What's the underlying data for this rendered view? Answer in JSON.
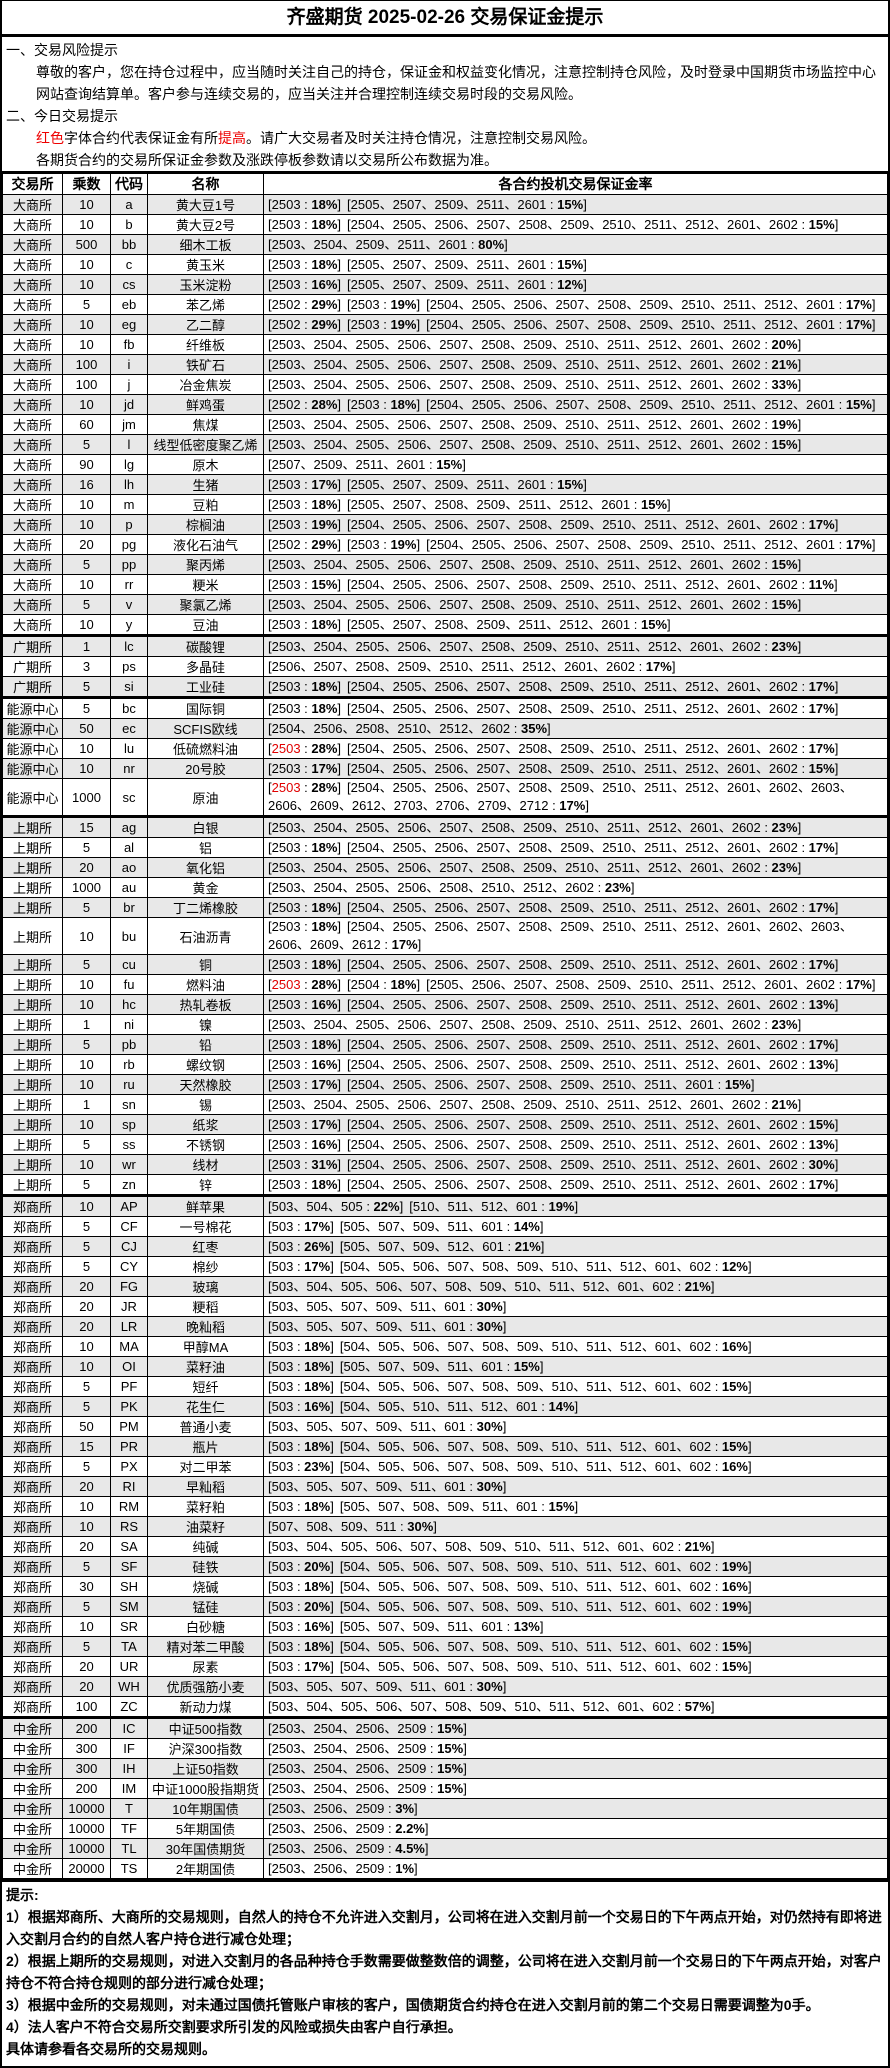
{
  "title": "齐盛期货 2025-02-26 交易保证金提示",
  "intro": {
    "s1_title": "一、交易风险提示",
    "s1_text": "尊敬的客户，您在持仓过程中，应当随时关注自己的持仓，保证金和权益变化情况，注意控制持仓风险，及时登录中国期货市场监控中心网站查询结算单。客户参与连续交易的，应当关注并合理控制连续交易时段的交易风险。",
    "s2_title": "二、今日交易提示",
    "s2_red1": "红色",
    "s2_mid": "字体合约代表保证金有所",
    "s2_red2": "提高",
    "s2_end": "。请广大交易者及时关注持仓情况，注意控制交易风险。",
    "s2_line2": "各期货合约的交易所保证金参数及涨跌停板参数请以交易所公布数据为准。"
  },
  "colors": {
    "highlight": "#e00000",
    "stripe": "#e8e8e8"
  },
  "headers": [
    "交易所",
    "乘数",
    "代码",
    "名称",
    "各合约投机交易保证金率"
  ],
  "rows": [
    [
      "大商所",
      "10",
      "a",
      "黄大豆1号",
      [
        [
          "2503",
          "18%"
        ],
        [
          "2505、2507、2509、2511、2601",
          "15%"
        ]
      ]
    ],
    [
      "大商所",
      "10",
      "b",
      "黄大豆2号",
      [
        [
          "2503",
          "18%"
        ],
        [
          "2504、2505、2506、2507、2508、2509、2510、2511、2512、2601、2602",
          "15%"
        ]
      ]
    ],
    [
      "大商所",
      "500",
      "bb",
      "细木工板",
      [
        [
          "2503、2504、2509、2511、2601",
          "80%"
        ]
      ]
    ],
    [
      "大商所",
      "10",
      "c",
      "黄玉米",
      [
        [
          "2503",
          "18%"
        ],
        [
          "2505、2507、2509、2511、2601",
          "15%"
        ]
      ]
    ],
    [
      "大商所",
      "10",
      "cs",
      "玉米淀粉",
      [
        [
          "2503",
          "16%"
        ],
        [
          "2505、2507、2509、2511、2601",
          "12%"
        ]
      ]
    ],
    [
      "大商所",
      "5",
      "eb",
      "苯乙烯",
      [
        [
          "2502",
          "29%"
        ],
        [
          "2503",
          "19%"
        ],
        [
          "2504、2505、2506、2507、2508、2509、2510、2511、2512、2601",
          "17%"
        ]
      ]
    ],
    [
      "大商所",
      "10",
      "eg",
      "乙二醇",
      [
        [
          "2502",
          "29%"
        ],
        [
          "2503",
          "19%"
        ],
        [
          "2504、2505、2506、2507、2508、2509、2510、2511、2512、2601",
          "17%"
        ]
      ]
    ],
    [
      "大商所",
      "10",
      "fb",
      "纤维板",
      [
        [
          "2503、2504、2505、2506、2507、2508、2509、2510、2511、2512、2601、2602",
          "20%"
        ]
      ]
    ],
    [
      "大商所",
      "100",
      "i",
      "铁矿石",
      [
        [
          "2503、2504、2505、2506、2507、2508、2509、2510、2511、2512、2601、2602",
          "21%"
        ]
      ]
    ],
    [
      "大商所",
      "100",
      "j",
      "冶金焦炭",
      [
        [
          "2503、2504、2505、2506、2507、2508、2509、2510、2511、2512、2601、2602",
          "33%"
        ]
      ]
    ],
    [
      "大商所",
      "10",
      "jd",
      "鲜鸡蛋",
      [
        [
          "2502",
          "28%"
        ],
        [
          "2503",
          "18%"
        ],
        [
          "2504、2505、2506、2507、2508、2509、2510、2511、2512、2601",
          "15%"
        ]
      ]
    ],
    [
      "大商所",
      "60",
      "jm",
      "焦煤",
      [
        [
          "2503、2504、2505、2506、2507、2508、2509、2510、2511、2512、2601、2602",
          "19%"
        ]
      ]
    ],
    [
      "大商所",
      "5",
      "l",
      "线型低密度聚乙烯",
      [
        [
          "2503、2504、2505、2506、2507、2508、2509、2510、2511、2512、2601、2602",
          "15%"
        ]
      ]
    ],
    [
      "大商所",
      "90",
      "lg",
      "原木",
      [
        [
          "2507、2509、2511、2601",
          "15%"
        ]
      ]
    ],
    [
      "大商所",
      "16",
      "lh",
      "生猪",
      [
        [
          "2503",
          "17%"
        ],
        [
          "2505、2507、2509、2511、2601",
          "15%"
        ]
      ]
    ],
    [
      "大商所",
      "10",
      "m",
      "豆粕",
      [
        [
          "2503",
          "18%"
        ],
        [
          "2505、2507、2508、2509、2511、2512、2601",
          "15%"
        ]
      ]
    ],
    [
      "大商所",
      "10",
      "p",
      "棕榈油",
      [
        [
          "2503",
          "19%"
        ],
        [
          "2504、2505、2506、2507、2508、2509、2510、2511、2512、2601、2602",
          "17%"
        ]
      ]
    ],
    [
      "大商所",
      "20",
      "pg",
      "液化石油气",
      [
        [
          "2502",
          "29%"
        ],
        [
          "2503",
          "19%"
        ],
        [
          "2504、2505、2506、2507、2508、2509、2510、2511、2512、2601",
          "17%"
        ]
      ]
    ],
    [
      "大商所",
      "5",
      "pp",
      "聚丙烯",
      [
        [
          "2503、2504、2505、2506、2507、2508、2509、2510、2511、2512、2601、2602",
          "15%"
        ]
      ]
    ],
    [
      "大商所",
      "10",
      "rr",
      "粳米",
      [
        [
          "2503",
          "15%"
        ],
        [
          "2504、2505、2506、2507、2508、2509、2510、2511、2512、2601、2602",
          "11%"
        ]
      ]
    ],
    [
      "大商所",
      "5",
      "v",
      "聚氯乙烯",
      [
        [
          "2503、2504、2505、2506、2507、2508、2509、2510、2511、2512、2601、2602",
          "15%"
        ]
      ]
    ],
    [
      "大商所",
      "10",
      "y",
      "豆油",
      [
        [
          "2503",
          "18%"
        ],
        [
          "2505、2507、2508、2509、2511、2512、2601",
          "15%"
        ]
      ]
    ],
    [
      "广期所",
      "1",
      "lc",
      "碳酸锂",
      [
        [
          "2503、2504、2505、2506、2507、2508、2509、2510、2511、2512、2601、2602",
          "23%"
        ]
      ]
    ],
    [
      "广期所",
      "3",
      "ps",
      "多晶硅",
      [
        [
          "2506、2507、2508、2509、2510、2511、2512、2601、2602",
          "17%"
        ]
      ]
    ],
    [
      "广期所",
      "5",
      "si",
      "工业硅",
      [
        [
          "2503",
          "18%"
        ],
        [
          "2504、2505、2506、2507、2508、2509、2510、2511、2512、2601、2602",
          "17%"
        ]
      ]
    ],
    [
      "能源中心",
      "5",
      "bc",
      "国际铜",
      [
        [
          "2503",
          "18%"
        ],
        [
          "2504、2505、2506、2507、2508、2509、2510、2511、2512、2601、2602",
          "17%"
        ]
      ]
    ],
    [
      "能源中心",
      "50",
      "ec",
      "SCFIS欧线",
      [
        [
          "2504、2506、2508、2510、2512、2602",
          "35%"
        ]
      ]
    ],
    [
      "能源中心",
      "10",
      "lu",
      "低硫燃料油",
      [
        [
          "2503",
          "28%",
          true
        ],
        [
          "2504、2505、2506、2507、2508、2509、2510、2511、2512、2601、2602",
          "17%"
        ]
      ]
    ],
    [
      "能源中心",
      "10",
      "nr",
      "20号胶",
      [
        [
          "2503",
          "17%"
        ],
        [
          "2504、2505、2506、2507、2508、2509、2510、2511、2512、2601、2602",
          "15%"
        ]
      ]
    ],
    [
      "能源中心",
      "1000",
      "sc",
      "原油",
      [
        [
          "2503",
          "28%",
          true
        ],
        [
          "2504、2505、2506、2507、2508、2509、2510、2511、2512、2601、2602、2603、2606、2609、2612、2703、2706、2709、2712",
          "17%"
        ]
      ]
    ],
    [
      "上期所",
      "15",
      "ag",
      "白银",
      [
        [
          "2503、2504、2505、2506、2507、2508、2509、2510、2511、2512、2601、2602",
          "23%"
        ]
      ]
    ],
    [
      "上期所",
      "5",
      "al",
      "铝",
      [
        [
          "2503",
          "18%"
        ],
        [
          "2504、2505、2506、2507、2508、2509、2510、2511、2512、2601、2602",
          "17%"
        ]
      ]
    ],
    [
      "上期所",
      "20",
      "ao",
      "氧化铝",
      [
        [
          "2503、2504、2505、2506、2507、2508、2509、2510、2511、2512、2601、2602",
          "23%"
        ]
      ]
    ],
    [
      "上期所",
      "1000",
      "au",
      "黄金",
      [
        [
          "2503、2504、2505、2506、2508、2510、2512、2602",
          "23%"
        ]
      ]
    ],
    [
      "上期所",
      "5",
      "br",
      "丁二烯橡胶",
      [
        [
          "2503",
          "18%"
        ],
        [
          "2504、2505、2506、2507、2508、2509、2510、2511、2512、2601、2602",
          "17%"
        ]
      ]
    ],
    [
      "上期所",
      "10",
      "bu",
      "石油沥青",
      [
        [
          "2503",
          "18%"
        ],
        [
          "2504、2505、2506、2507、2508、2509、2510、2511、2512、2601、2602、2603、2606、2609、2612",
          "17%"
        ]
      ]
    ],
    [
      "上期所",
      "5",
      "cu",
      "铜",
      [
        [
          "2503",
          "18%"
        ],
        [
          "2504、2505、2506、2507、2508、2509、2510、2511、2512、2601、2602",
          "17%"
        ]
      ]
    ],
    [
      "上期所",
      "10",
      "fu",
      "燃料油",
      [
        [
          "2503",
          "28%",
          true
        ],
        [
          "2504",
          "18%"
        ],
        [
          "2505、2506、2507、2508、2509、2510、2511、2512、2601、2602",
          "17%"
        ]
      ]
    ],
    [
      "上期所",
      "10",
      "hc",
      "热轧卷板",
      [
        [
          "2503",
          "16%"
        ],
        [
          "2504、2505、2506、2507、2508、2509、2510、2511、2512、2601、2602",
          "13%"
        ]
      ]
    ],
    [
      "上期所",
      "1",
      "ni",
      "镍",
      [
        [
          "2503、2504、2505、2506、2507、2508、2509、2510、2511、2512、2601、2602",
          "23%"
        ]
      ]
    ],
    [
      "上期所",
      "5",
      "pb",
      "铅",
      [
        [
          "2503",
          "18%"
        ],
        [
          "2504、2505、2506、2507、2508、2509、2510、2511、2512、2601、2602",
          "17%"
        ]
      ]
    ],
    [
      "上期所",
      "10",
      "rb",
      "螺纹钢",
      [
        [
          "2503",
          "16%"
        ],
        [
          "2504、2505、2506、2507、2508、2509、2510、2511、2512、2601、2602",
          "13%"
        ]
      ]
    ],
    [
      "上期所",
      "10",
      "ru",
      "天然橡胶",
      [
        [
          "2503",
          "17%"
        ],
        [
          "2504、2505、2506、2507、2508、2509、2510、2511、2601",
          "15%"
        ]
      ]
    ],
    [
      "上期所",
      "1",
      "sn",
      "锡",
      [
        [
          "2503、2504、2505、2506、2507、2508、2509、2510、2511、2512、2601、2602",
          "21%"
        ]
      ]
    ],
    [
      "上期所",
      "10",
      "sp",
      "纸浆",
      [
        [
          "2503",
          "17%"
        ],
        [
          "2504、2505、2506、2507、2508、2509、2510、2511、2512、2601、2602",
          "15%"
        ]
      ]
    ],
    [
      "上期所",
      "5",
      "ss",
      "不锈钢",
      [
        [
          "2503",
          "16%"
        ],
        [
          "2504、2505、2506、2507、2508、2509、2510、2511、2512、2601、2602",
          "13%"
        ]
      ]
    ],
    [
      "上期所",
      "10",
      "wr",
      "线材",
      [
        [
          "2503",
          "31%"
        ],
        [
          "2504、2505、2506、2507、2508、2509、2510、2511、2512、2601、2602",
          "30%"
        ]
      ]
    ],
    [
      "上期所",
      "5",
      "zn",
      "锌",
      [
        [
          "2503",
          "18%"
        ],
        [
          "2504、2505、2506、2507、2508、2509、2510、2511、2512、2601、2602",
          "17%"
        ]
      ]
    ],
    [
      "郑商所",
      "10",
      "AP",
      "鲜苹果",
      [
        [
          "503、504、505",
          "22%"
        ],
        [
          "510、511、512、601",
          "19%"
        ]
      ]
    ],
    [
      "郑商所",
      "5",
      "CF",
      "一号棉花",
      [
        [
          "503",
          "17%"
        ],
        [
          "505、507、509、511、601",
          "14%"
        ]
      ]
    ],
    [
      "郑商所",
      "5",
      "CJ",
      "红枣",
      [
        [
          "503",
          "26%"
        ],
        [
          "505、507、509、512、601",
          "21%"
        ]
      ]
    ],
    [
      "郑商所",
      "5",
      "CY",
      "棉纱",
      [
        [
          "503",
          "17%"
        ],
        [
          "504、505、506、507、508、509、510、511、512、601、602",
          "12%"
        ]
      ]
    ],
    [
      "郑商所",
      "20",
      "FG",
      "玻璃",
      [
        [
          "503、504、505、506、507、508、509、510、511、512、601、602",
          "21%"
        ]
      ]
    ],
    [
      "郑商所",
      "20",
      "JR",
      "粳稻",
      [
        [
          "503、505、507、509、511、601",
          "30%"
        ]
      ]
    ],
    [
      "郑商所",
      "20",
      "LR",
      "晚籼稻",
      [
        [
          "503、505、507、509、511、601",
          "30%"
        ]
      ]
    ],
    [
      "郑商所",
      "10",
      "MA",
      "甲醇MA",
      [
        [
          "503",
          "18%"
        ],
        [
          "504、505、506、507、508、509、510、511、512、601、602",
          "16%"
        ]
      ]
    ],
    [
      "郑商所",
      "10",
      "OI",
      "菜籽油",
      [
        [
          "503",
          "18%"
        ],
        [
          "505、507、509、511、601",
          "15%"
        ]
      ]
    ],
    [
      "郑商所",
      "5",
      "PF",
      "短纤",
      [
        [
          "503",
          "18%"
        ],
        [
          "504、505、506、507、508、509、510、511、512、601、602",
          "15%"
        ]
      ]
    ],
    [
      "郑商所",
      "5",
      "PK",
      "花生仁",
      [
        [
          "503",
          "16%"
        ],
        [
          "504、505、510、511、512、601",
          "14%"
        ]
      ]
    ],
    [
      "郑商所",
      "50",
      "PM",
      "普通小麦",
      [
        [
          "503、505、507、509、511、601",
          "30%"
        ]
      ]
    ],
    [
      "郑商所",
      "15",
      "PR",
      "瓶片",
      [
        [
          "503",
          "18%"
        ],
        [
          "504、505、506、507、508、509、510、511、512、601、602",
          "15%"
        ]
      ]
    ],
    [
      "郑商所",
      "5",
      "PX",
      "对二甲苯",
      [
        [
          "503",
          "23%"
        ],
        [
          "504、505、506、507、508、509、510、511、512、601、602",
          "16%"
        ]
      ]
    ],
    [
      "郑商所",
      "20",
      "RI",
      "早籼稻",
      [
        [
          "503、505、507、509、511、601",
          "30%"
        ]
      ]
    ],
    [
      "郑商所",
      "10",
      "RM",
      "菜籽粕",
      [
        [
          "503",
          "18%"
        ],
        [
          "505、507、508、509、511、601",
          "15%"
        ]
      ]
    ],
    [
      "郑商所",
      "10",
      "RS",
      "油菜籽",
      [
        [
          "507、508、509、511",
          "30%"
        ]
      ]
    ],
    [
      "郑商所",
      "20",
      "SA",
      "纯碱",
      [
        [
          "503、504、505、506、507、508、509、510、511、512、601、602",
          "21%"
        ]
      ]
    ],
    [
      "郑商所",
      "5",
      "SF",
      "硅铁",
      [
        [
          "503",
          "20%"
        ],
        [
          "504、505、506、507、508、509、510、511、512、601、602",
          "19%"
        ]
      ]
    ],
    [
      "郑商所",
      "30",
      "SH",
      "烧碱",
      [
        [
          "503",
          "18%"
        ],
        [
          "504、505、506、507、508、509、510、511、512、601、602",
          "16%"
        ]
      ]
    ],
    [
      "郑商所",
      "5",
      "SM",
      "锰硅",
      [
        [
          "503",
          "20%"
        ],
        [
          "504、505、506、507、508、509、510、511、512、601、602",
          "19%"
        ]
      ]
    ],
    [
      "郑商所",
      "10",
      "SR",
      "白砂糖",
      [
        [
          "503",
          "16%"
        ],
        [
          "505、507、509、511、601",
          "13%"
        ]
      ]
    ],
    [
      "郑商所",
      "5",
      "TA",
      "精对苯二甲酸",
      [
        [
          "503",
          "18%"
        ],
        [
          "504、505、506、507、508、509、510、511、512、601、602",
          "15%"
        ]
      ]
    ],
    [
      "郑商所",
      "20",
      "UR",
      "尿素",
      [
        [
          "503",
          "17%"
        ],
        [
          "504、505、506、507、508、509、510、511、512、601、602",
          "15%"
        ]
      ]
    ],
    [
      "郑商所",
      "20",
      "WH",
      "优质强筋小麦",
      [
        [
          "503、505、507、509、511、601",
          "30%"
        ]
      ]
    ],
    [
      "郑商所",
      "100",
      "ZC",
      "新动力煤",
      [
        [
          "503、504、505、506、507、508、509、510、511、512、601、602",
          "57%"
        ]
      ]
    ],
    [
      "中金所",
      "200",
      "IC",
      "中证500指数",
      [
        [
          "2503、2504、2506、2509",
          "15%"
        ]
      ]
    ],
    [
      "中金所",
      "300",
      "IF",
      "沪深300指数",
      [
        [
          "2503、2504、2506、2509",
          "15%"
        ]
      ]
    ],
    [
      "中金所",
      "300",
      "IH",
      "上证50指数",
      [
        [
          "2503、2504、2506、2509",
          "15%"
        ]
      ]
    ],
    [
      "中金所",
      "200",
      "IM",
      "中证1000股指期货",
      [
        [
          "2503、2504、2506、2509",
          "15%"
        ]
      ]
    ],
    [
      "中金所",
      "10000",
      "T",
      "10年期国债",
      [
        [
          "2503、2506、2509",
          "3%"
        ]
      ]
    ],
    [
      "中金所",
      "10000",
      "TF",
      "5年期国债",
      [
        [
          "2503、2506、2509",
          "2.2%"
        ]
      ]
    ],
    [
      "中金所",
      "10000",
      "TL",
      "30年国债期货",
      [
        [
          "2503、2506、2509",
          "4.5%"
        ]
      ]
    ],
    [
      "中金所",
      "20000",
      "TS",
      "2年期国债",
      [
        [
          "2503、2506、2509",
          "1%"
        ]
      ]
    ]
  ],
  "notes": {
    "title": "提示:",
    "items": [
      "1）根据郑商所、大商所的交易规则，自然人的持仓不允许进入交割月，公司将在进入交割月前一个交易日的下午两点开始，对仍然持有即将进入交割月合约的自然人客户持仓进行减仓处理；",
      "2）根据上期所的交易规则，对进入交割月的各品种持仓手数需要做整数倍的调整，公司将在进入交割月前一个交易日的下午两点开始，对客户持仓不符合持仓规则的部分进行减仓处理；",
      "3）根据中金所的交易规则，对未通过国债托管账户审核的客户，国债期货合约持仓在进入交割月前的第二个交易日需要调整为0手。",
      "4）法人客户不符合交易所交割要求所引发的风险或损失由客户自行承担。"
    ],
    "footer": "具体请参看各交易所的交易规则。"
  }
}
